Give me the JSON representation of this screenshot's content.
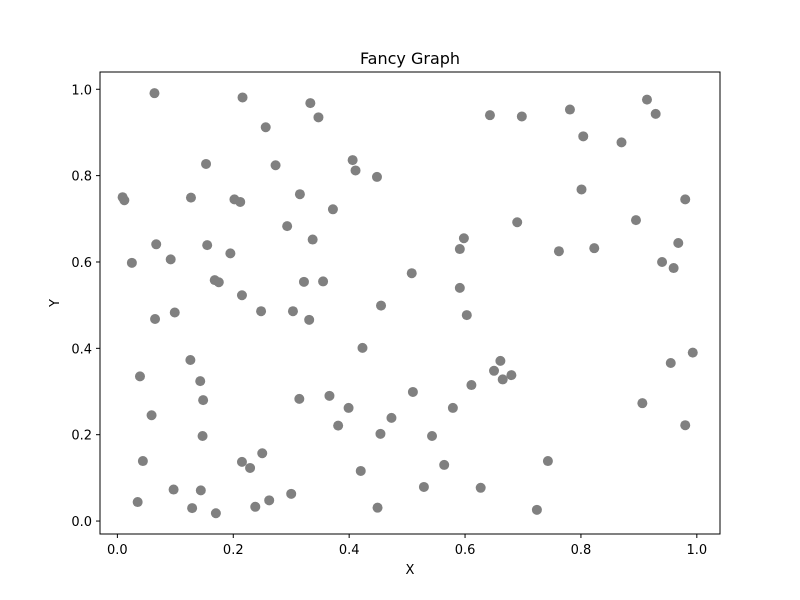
{
  "chart_data": {
    "type": "scatter",
    "title": "Fancy Graph",
    "xlabel": "X",
    "ylabel": "Y",
    "xlim": [
      -0.03,
      1.04
    ],
    "ylim": [
      -0.03,
      1.04
    ],
    "xticks": [
      0.0,
      0.2,
      0.4,
      0.6,
      0.8,
      1.0
    ],
    "xtick_labels": [
      "0.0",
      "0.2",
      "0.4",
      "0.6",
      "0.8",
      "1.0"
    ],
    "yticks": [
      0.0,
      0.2,
      0.4,
      0.6,
      0.8,
      1.0
    ],
    "ytick_labels": [
      "0.0",
      "0.2",
      "0.4",
      "0.6",
      "0.8",
      "1.0"
    ],
    "grid": false,
    "marker_color": "#808080",
    "points": [
      {
        "x": 0.064,
        "y": 0.991
      },
      {
        "x": 0.216,
        "y": 0.981
      },
      {
        "x": 0.333,
        "y": 0.968
      },
      {
        "x": 0.347,
        "y": 0.935
      },
      {
        "x": 0.256,
        "y": 0.912
      },
      {
        "x": 0.153,
        "y": 0.827
      },
      {
        "x": 0.273,
        "y": 0.824
      },
      {
        "x": 0.406,
        "y": 0.836
      },
      {
        "x": 0.411,
        "y": 0.812
      },
      {
        "x": 0.448,
        "y": 0.797
      },
      {
        "x": 0.009,
        "y": 0.75
      },
      {
        "x": 0.012,
        "y": 0.743
      },
      {
        "x": 0.127,
        "y": 0.749
      },
      {
        "x": 0.202,
        "y": 0.745
      },
      {
        "x": 0.212,
        "y": 0.739
      },
      {
        "x": 0.315,
        "y": 0.757
      },
      {
        "x": 0.372,
        "y": 0.722
      },
      {
        "x": 0.293,
        "y": 0.683
      },
      {
        "x": 0.337,
        "y": 0.652
      },
      {
        "x": 0.067,
        "y": 0.641
      },
      {
        "x": 0.155,
        "y": 0.639
      },
      {
        "x": 0.195,
        "y": 0.62
      },
      {
        "x": 0.025,
        "y": 0.598
      },
      {
        "x": 0.092,
        "y": 0.606
      },
      {
        "x": 0.168,
        "y": 0.558
      },
      {
        "x": 0.175,
        "y": 0.553
      },
      {
        "x": 0.322,
        "y": 0.554
      },
      {
        "x": 0.355,
        "y": 0.555
      },
      {
        "x": 0.215,
        "y": 0.523
      },
      {
        "x": 0.065,
        "y": 0.468
      },
      {
        "x": 0.099,
        "y": 0.483
      },
      {
        "x": 0.248,
        "y": 0.486
      },
      {
        "x": 0.303,
        "y": 0.486
      },
      {
        "x": 0.331,
        "y": 0.466
      },
      {
        "x": 0.455,
        "y": 0.499
      },
      {
        "x": 0.508,
        "y": 0.574
      },
      {
        "x": 0.591,
        "y": 0.63
      },
      {
        "x": 0.598,
        "y": 0.655
      },
      {
        "x": 0.591,
        "y": 0.54
      },
      {
        "x": 0.603,
        "y": 0.477
      },
      {
        "x": 0.643,
        "y": 0.94
      },
      {
        "x": 0.698,
        "y": 0.937
      },
      {
        "x": 0.781,
        "y": 0.953
      },
      {
        "x": 0.804,
        "y": 0.891
      },
      {
        "x": 0.87,
        "y": 0.877
      },
      {
        "x": 0.914,
        "y": 0.976
      },
      {
        "x": 0.929,
        "y": 0.943
      },
      {
        "x": 0.801,
        "y": 0.768
      },
      {
        "x": 0.69,
        "y": 0.692
      },
      {
        "x": 0.895,
        "y": 0.697
      },
      {
        "x": 0.98,
        "y": 0.745
      },
      {
        "x": 0.762,
        "y": 0.625
      },
      {
        "x": 0.823,
        "y": 0.632
      },
      {
        "x": 0.968,
        "y": 0.644
      },
      {
        "x": 0.94,
        "y": 0.6
      },
      {
        "x": 0.96,
        "y": 0.586
      },
      {
        "x": 0.039,
        "y": 0.335
      },
      {
        "x": 0.126,
        "y": 0.373
      },
      {
        "x": 0.143,
        "y": 0.324
      },
      {
        "x": 0.148,
        "y": 0.28
      },
      {
        "x": 0.059,
        "y": 0.245
      },
      {
        "x": 0.147,
        "y": 0.197
      },
      {
        "x": 0.044,
        "y": 0.139
      },
      {
        "x": 0.215,
        "y": 0.137
      },
      {
        "x": 0.25,
        "y": 0.157
      },
      {
        "x": 0.229,
        "y": 0.123
      },
      {
        "x": 0.097,
        "y": 0.073
      },
      {
        "x": 0.144,
        "y": 0.071
      },
      {
        "x": 0.035,
        "y": 0.044
      },
      {
        "x": 0.129,
        "y": 0.03
      },
      {
        "x": 0.17,
        "y": 0.018
      },
      {
        "x": 0.238,
        "y": 0.033
      },
      {
        "x": 0.262,
        "y": 0.048
      },
      {
        "x": 0.3,
        "y": 0.063
      },
      {
        "x": 0.314,
        "y": 0.283
      },
      {
        "x": 0.366,
        "y": 0.29
      },
      {
        "x": 0.399,
        "y": 0.262
      },
      {
        "x": 0.381,
        "y": 0.221
      },
      {
        "x": 0.423,
        "y": 0.401
      },
      {
        "x": 0.454,
        "y": 0.202
      },
      {
        "x": 0.473,
        "y": 0.239
      },
      {
        "x": 0.42,
        "y": 0.116
      },
      {
        "x": 0.449,
        "y": 0.031
      },
      {
        "x": 0.51,
        "y": 0.299
      },
      {
        "x": 0.543,
        "y": 0.197
      },
      {
        "x": 0.564,
        "y": 0.13
      },
      {
        "x": 0.529,
        "y": 0.079
      },
      {
        "x": 0.579,
        "y": 0.262
      },
      {
        "x": 0.611,
        "y": 0.315
      },
      {
        "x": 0.65,
        "y": 0.348
      },
      {
        "x": 0.661,
        "y": 0.371
      },
      {
        "x": 0.665,
        "y": 0.328
      },
      {
        "x": 0.68,
        "y": 0.338
      },
      {
        "x": 0.627,
        "y": 0.077
      },
      {
        "x": 0.724,
        "y": 0.026
      },
      {
        "x": 0.743,
        "y": 0.139
      },
      {
        "x": 0.906,
        "y": 0.273
      },
      {
        "x": 0.955,
        "y": 0.366
      },
      {
        "x": 0.993,
        "y": 0.39
      },
      {
        "x": 0.98,
        "y": 0.222
      }
    ]
  }
}
